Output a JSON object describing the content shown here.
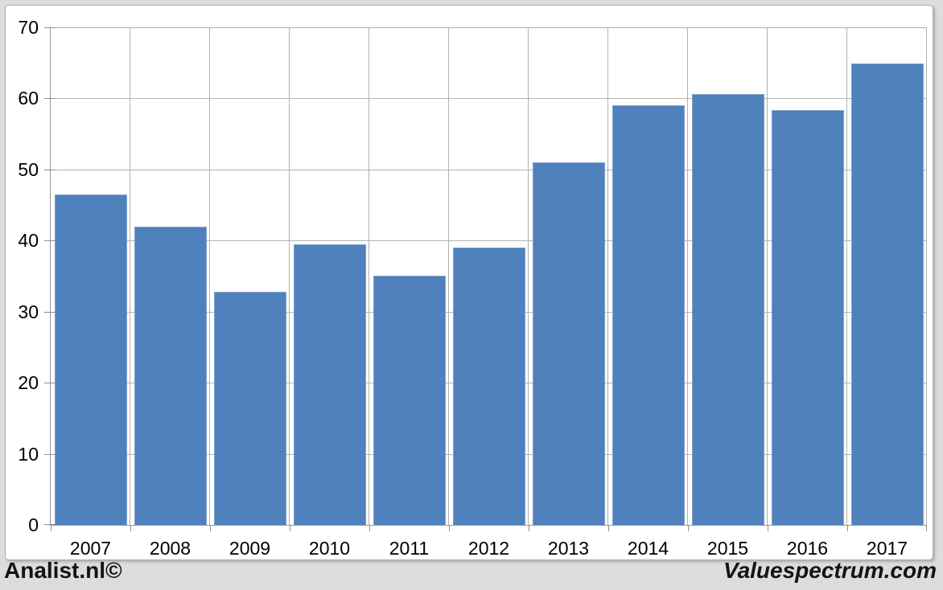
{
  "chart_data": {
    "type": "bar",
    "title": "",
    "xlabel": "",
    "ylabel": "",
    "categories": [
      "2007",
      "2008",
      "2009",
      "2010",
      "2011",
      "2012",
      "2013",
      "2014",
      "2015",
      "2016",
      "2017"
    ],
    "values": [
      46.5,
      41.9,
      32.8,
      39.5,
      35.1,
      39.0,
      51.0,
      59.0,
      60.6,
      58.3,
      64.9
    ],
    "ylim": [
      0,
      70
    ],
    "yticks": [
      0,
      10,
      20,
      30,
      40,
      50,
      60,
      70
    ],
    "grid": true,
    "legend": "none",
    "bar_color": "#4f81bd",
    "bar_border_color": "#7fa1cd",
    "gridline_color": "#b2b2b2",
    "axis_color": "#989898",
    "text_color": "#000000",
    "plot_background": "#ffffff",
    "outer_background": "#dcdcdc"
  },
  "footer": {
    "left_brand": "Analist.nl©",
    "right_brand": "Valuespectrum.com"
  }
}
